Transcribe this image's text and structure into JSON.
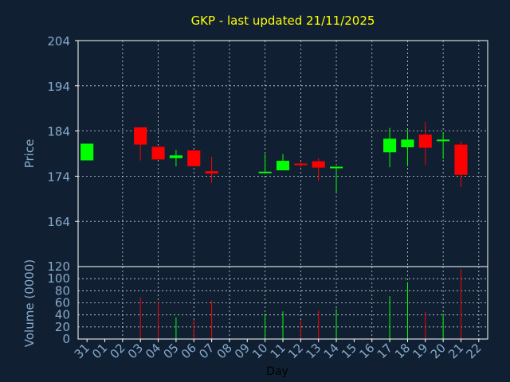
{
  "chart_data": [
    {
      "type": "candlestick",
      "title": "GKP - last updated 21/11/2025",
      "ylabel": "Price",
      "ylim": [
        154,
        204
      ],
      "yticks": [
        164,
        174,
        184,
        194,
        204
      ],
      "grid": true,
      "colors": {
        "up": "#00ff00",
        "down": "#ff0000",
        "title": "#ffff00",
        "axis_text": "#88aacc",
        "grid": "#ffffff"
      },
      "candles": [
        {
          "day": "31",
          "open": 177.5,
          "close": 181.2,
          "high": 181.2,
          "low": 177.5
        },
        {
          "day": "03",
          "open": 184.8,
          "close": 181.0,
          "high": 184.8,
          "low": 177.5
        },
        {
          "day": "04",
          "open": 180.5,
          "close": 177.7,
          "high": 180.5,
          "low": 177.7
        },
        {
          "day": "05",
          "open": 178.0,
          "close": 178.6,
          "high": 179.8,
          "low": 176.2
        },
        {
          "day": "06",
          "open": 179.7,
          "close": 176.2,
          "high": 179.7,
          "low": 176.2
        },
        {
          "day": "07",
          "open": 175.1,
          "close": 174.6,
          "high": 178.3,
          "low": 172.5
        },
        {
          "day": "10",
          "open": 174.8,
          "close": 175.0,
          "high": 178.9,
          "low": 174.6
        },
        {
          "day": "11",
          "open": 175.3,
          "close": 177.4,
          "high": 178.9,
          "low": 175.3
        },
        {
          "day": "12",
          "open": 176.8,
          "close": 176.5,
          "high": 177.3,
          "low": 175.9
        },
        {
          "day": "13",
          "open": 177.3,
          "close": 175.9,
          "high": 178.0,
          "low": 173.0
        },
        {
          "day": "14",
          "open": 175.9,
          "close": 176.1,
          "high": 176.1,
          "low": 170.4
        },
        {
          "day": "17",
          "open": 179.3,
          "close": 182.3,
          "high": 184.7,
          "low": 176.0
        },
        {
          "day": "18",
          "open": 180.4,
          "close": 182.1,
          "high": 184.2,
          "low": 176.2
        },
        {
          "day": "19",
          "open": 183.2,
          "close": 180.3,
          "high": 186.0,
          "low": 176.5
        },
        {
          "day": "20",
          "open": 181.8,
          "close": 182.1,
          "high": 183.7,
          "low": 177.8
        },
        {
          "day": "21",
          "open": 181.0,
          "close": 174.3,
          "high": 181.7,
          "low": 171.6
        }
      ]
    },
    {
      "type": "bar",
      "ylabel": "Volume (0000)",
      "xlabel": "Day",
      "ylim": [
        0,
        120
      ],
      "yticks": [
        0,
        20,
        40,
        60,
        80,
        100,
        120
      ],
      "categories": [
        "31",
        "01",
        "02",
        "03",
        "04",
        "05",
        "06",
        "07",
        "08",
        "09",
        "10",
        "11",
        "12",
        "13",
        "14",
        "15",
        "16",
        "17",
        "18",
        "19",
        "20",
        "21",
        "22"
      ],
      "volume": [
        {
          "day": "03",
          "value": 69,
          "dir": "down"
        },
        {
          "day": "04",
          "value": 62,
          "dir": "down"
        },
        {
          "day": "05",
          "value": 36,
          "dir": "up"
        },
        {
          "day": "06",
          "value": 32,
          "dir": "down"
        },
        {
          "day": "07",
          "value": 64,
          "dir": "down"
        },
        {
          "day": "10",
          "value": 42,
          "dir": "up"
        },
        {
          "day": "11",
          "value": 46,
          "dir": "up"
        },
        {
          "day": "12",
          "value": 31,
          "dir": "down"
        },
        {
          "day": "13",
          "value": 47,
          "dir": "down"
        },
        {
          "day": "14",
          "value": 50,
          "dir": "up"
        },
        {
          "day": "17",
          "value": 71,
          "dir": "up"
        },
        {
          "day": "18",
          "value": 94,
          "dir": "up"
        },
        {
          "day": "19",
          "value": 45,
          "dir": "down"
        },
        {
          "day": "20",
          "value": 42,
          "dir": "up"
        },
        {
          "day": "21",
          "value": 116,
          "dir": "down"
        }
      ]
    }
  ]
}
